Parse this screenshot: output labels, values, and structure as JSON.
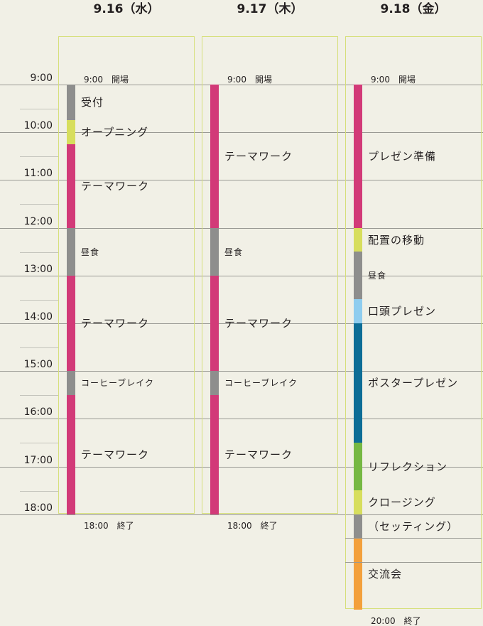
{
  "days": [
    {
      "title": "9.16（水）",
      "opening": "9:00　開場",
      "closing": "18:00　終了",
      "segments": [
        {
          "start": "9:00",
          "end": "9:45",
          "color": "#8e8e8d",
          "label": "受付",
          "small": false
        },
        {
          "start": "9:45",
          "end": "10:15",
          "color": "#d7de5d",
          "label": "オープニング",
          "small": false
        },
        {
          "start": "10:15",
          "end": "12:00",
          "color": "#d23a78",
          "label": "テーマワーク",
          "small": false
        },
        {
          "start": "12:00",
          "end": "13:00",
          "color": "#8e8e8d",
          "label": "昼食",
          "small": true
        },
        {
          "start": "13:00",
          "end": "15:00",
          "color": "#d23a78",
          "label": "テーマワーク",
          "small": false
        },
        {
          "start": "15:00",
          "end": "15:30",
          "color": "#8e8e8d",
          "label": "コーヒーブレイク",
          "small": true
        },
        {
          "start": "15:30",
          "end": "18:00",
          "color": "#d23a78",
          "label": "テーマワーク",
          "small": false
        }
      ]
    },
    {
      "title": "9.17（木）",
      "opening": "9:00　開場",
      "closing": "18:00　終了",
      "segments": [
        {
          "start": "9:00",
          "end": "12:00",
          "color": "#d23a78",
          "label": "テーマワーク",
          "small": false
        },
        {
          "start": "12:00",
          "end": "13:00",
          "color": "#8e8e8d",
          "label": "昼食",
          "small": true
        },
        {
          "start": "13:00",
          "end": "15:00",
          "color": "#d23a78",
          "label": "テーマワーク",
          "small": false
        },
        {
          "start": "15:00",
          "end": "15:30",
          "color": "#8e8e8d",
          "label": "コーヒーブレイク",
          "small": true
        },
        {
          "start": "15:30",
          "end": "18:00",
          "color": "#d23a78",
          "label": "テーマワーク",
          "small": false
        }
      ]
    },
    {
      "title": "9.18（金）",
      "opening": "9:00　開場",
      "closing": "20:00　終了",
      "segments": [
        {
          "start": "9:00",
          "end": "12:00",
          "color": "#d23a78",
          "label": "プレゼン準備",
          "small": false
        },
        {
          "start": "12:00",
          "end": "12:30",
          "color": "#d7de5d",
          "label": "配置の移動",
          "small": false
        },
        {
          "start": "12:30",
          "end": "13:30",
          "color": "#8e8e8d",
          "label": "昼食",
          "small": true
        },
        {
          "start": "13:30",
          "end": "14:00",
          "color": "#8fcdef",
          "label": "口頭プレゼン",
          "small": false
        },
        {
          "start": "14:00",
          "end": "16:30",
          "color": "#0d6d96",
          "label": "ポスタープレゼン",
          "small": false
        },
        {
          "start": "16:30",
          "end": "17:30",
          "color": "#76b843",
          "label": "リフレクション",
          "small": false
        },
        {
          "start": "17:30",
          "end": "18:00",
          "color": "#d7de5d",
          "label": "クロージング",
          "small": false
        },
        {
          "start": "18:00",
          "end": "18:30",
          "color": "#8e8e8d",
          "label": "（セッティング）",
          "small": false
        },
        {
          "start": "18:30",
          "end": "20:00",
          "color": "#f3a03c",
          "label": "交流会",
          "small": false
        }
      ]
    }
  ],
  "time_labels": [
    "9:00",
    "10:00",
    "11:00",
    "12:00",
    "13:00",
    "14:00",
    "15:00",
    "16:00",
    "17:00",
    "18:00"
  ]
}
